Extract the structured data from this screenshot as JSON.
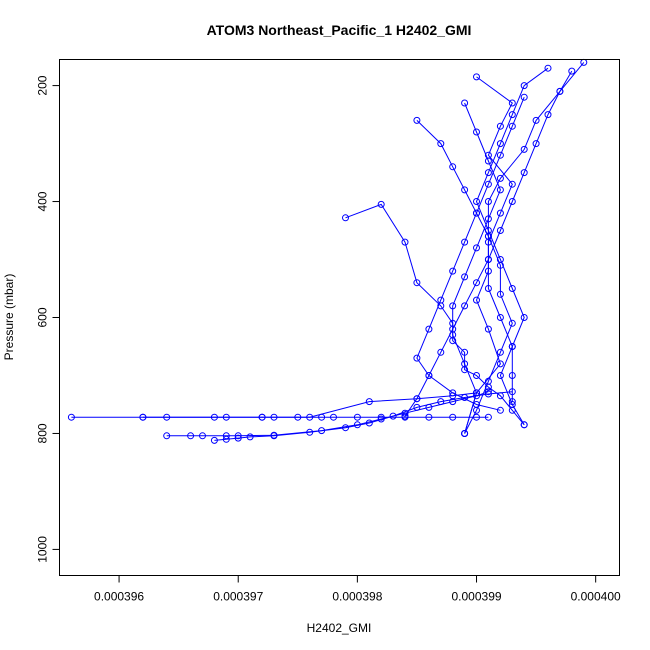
{
  "chart_data": {
    "type": "line",
    "title": "ATOM3 Northeast_Pacific_1 H2402_GMI",
    "xlabel": "H2402_GMI",
    "ylabel": "Pressure (mbar)",
    "xlim": [
      0.0003955,
      0.0004002
    ],
    "ylim": [
      1045,
      155
    ],
    "y_reversed": true,
    "grid": false,
    "line_color": "#0000ff",
    "x_ticks": [
      {
        "value": 0.000396,
        "label": "0.000396"
      },
      {
        "value": 0.000397,
        "label": "0.000397"
      },
      {
        "value": 0.000398,
        "label": "0.000398"
      },
      {
        "value": 0.000399,
        "label": "0.000399"
      },
      {
        "value": 0.0004,
        "label": "0.000400"
      }
    ],
    "y_ticks": [
      {
        "value": 200,
        "label": "200"
      },
      {
        "value": 400,
        "label": "400"
      },
      {
        "value": 600,
        "label": "600"
      },
      {
        "value": 800,
        "label": "800"
      },
      {
        "value": 1000,
        "label": "1000"
      }
    ],
    "series": [
      {
        "x": [
          0.000399,
          0.0003993,
          0.0003992,
          0.0003991,
          0.0003993,
          0.0003992,
          0.0003991,
          0.0003991,
          0.000399,
          0.0003991,
          0.0003992,
          0.000399,
          0.0003989
        ],
        "y": [
          185,
          230,
          270,
          320,
          370,
          420,
          470,
          520,
          570,
          620,
          680,
          730,
          800
        ]
      },
      {
        "x": [
          0.0003999,
          0.0003997,
          0.0003995,
          0.0003994,
          0.0003992,
          0.0003991,
          0.0003991,
          0.0003992,
          0.0003992,
          0.0003993,
          0.0003992,
          0.0003991,
          0.000399,
          0.0003989
        ],
        "y": [
          160,
          210,
          260,
          310,
          360,
          400,
          460,
          510,
          560,
          610,
          660,
          710,
          760,
          800
        ]
      },
      {
        "x": [
          0.0003985,
          0.0003987,
          0.0003988,
          0.0003989,
          0.000399,
          0.0003991,
          0.0003991,
          0.000399,
          0.0003989,
          0.0003988,
          0.0003987,
          0.0003986,
          0.0003985,
          0.0003984
        ],
        "y": [
          260,
          300,
          340,
          380,
          420,
          460,
          500,
          540,
          580,
          620,
          660,
          700,
          740,
          770
        ]
      },
      {
        "x": [
          0.0003994,
          0.0003993,
          0.0003992,
          0.0003991,
          0.000399,
          0.0003989,
          0.0003988,
          0.0003987,
          0.0003986,
          0.0003985,
          0.0003986,
          0.0003988,
          0.000399,
          0.0003992
        ],
        "y": [
          220,
          270,
          320,
          370,
          420,
          470,
          520,
          570,
          620,
          670,
          700,
          730,
          750,
          760
        ]
      },
      {
        "x": [
          0.0003979,
          0.0003982,
          0.0003984,
          0.0003985,
          0.0003987,
          0.0003988,
          0.0003988,
          0.0003989,
          0.0003989,
          0.000399,
          0.0003991,
          0.0003992,
          0.0003993,
          0.0003994
        ],
        "y": [
          428,
          405,
          470,
          540,
          580,
          610,
          640,
          660,
          690,
          700,
          720,
          735,
          760,
          785
        ]
      },
      {
        "x": [
          0.0003996,
          0.0003994,
          0.0003993,
          0.0003992,
          0.0003991,
          0.000399,
          0.0003991,
          0.0003992,
          0.0003993,
          0.0003994,
          0.0003993,
          0.0003992,
          0.0003993,
          0.0003994
        ],
        "y": [
          170,
          200,
          250,
          300,
          350,
          400,
          450,
          500,
          550,
          600,
          650,
          700,
          750,
          785
        ]
      },
      {
        "x": [
          0.0003998,
          0.0003997,
          0.0003996,
          0.0003995,
          0.0003994,
          0.0003993,
          0.0003992,
          0.0003991,
          0.0003991,
          0.0003992,
          0.0003993,
          0.0003993,
          0.0003993
        ],
        "y": [
          175,
          210,
          250,
          300,
          350,
          400,
          450,
          500,
          550,
          600,
          650,
          700,
          745
        ]
      },
      {
        "x": [
          0.0003956,
          0.0003962,
          0.0003964,
          0.0003969,
          0.0003972,
          0.0003973,
          0.0003975,
          0.0003977,
          0.0003978,
          0.000398,
          0.0003982,
          0.0003984,
          0.0003986,
          0.0003988,
          0.000399,
          0.0003991
        ],
        "y": [
          772,
          772,
          772,
          772,
          772,
          772,
          772,
          772,
          772,
          772,
          772,
          772,
          772,
          772,
          772,
          772
        ]
      },
      {
        "x": [
          0.0003964,
          0.0003966,
          0.0003967,
          0.0003969,
          0.000397,
          0.0003973,
          0.0003977,
          0.000398,
          0.0003982,
          0.0003984,
          0.0003986,
          0.0003988,
          0.000399,
          0.0003991
        ],
        "y": [
          804,
          804,
          804,
          804,
          804,
          803,
          795,
          785,
          775,
          765,
          755,
          745,
          735,
          728
        ]
      },
      {
        "x": [
          0.0003968,
          0.0003969,
          0.000397,
          0.0003971,
          0.0003973,
          0.0003976,
          0.0003979,
          0.0003981,
          0.0003983,
          0.0003985,
          0.0003987,
          0.0003989,
          0.0003991,
          0.0003993
        ],
        "y": [
          812,
          810,
          808,
          806,
          804,
          798,
          790,
          782,
          770,
          755,
          745,
          738,
          732,
          728
        ]
      },
      {
        "x": [
          0.0003962,
          0.0003968,
          0.0003972,
          0.0003976,
          0.0003981,
          0.0003985,
          0.0003988,
          0.000399
        ],
        "y": [
          772,
          772,
          772,
          772,
          745,
          740,
          735,
          730
        ]
      },
      {
        "x": [
          0.0003989,
          0.000399,
          0.0003991,
          0.0003992,
          0.0003991,
          0.000399,
          0.0003989,
          0.0003988,
          0.0003988,
          0.0003989,
          0.000399,
          0.0003989
        ],
        "y": [
          230,
          280,
          330,
          380,
          430,
          480,
          530,
          580,
          630,
          680,
          730,
          800
        ]
      }
    ]
  }
}
